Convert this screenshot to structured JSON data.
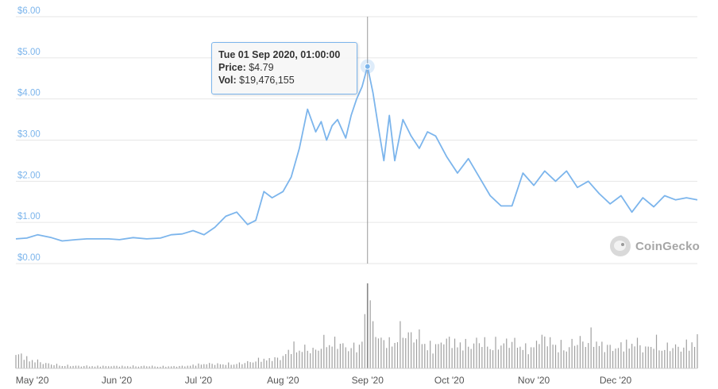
{
  "chart_data": {
    "type": "line",
    "title": "",
    "xlabel": "",
    "ylabel": "",
    "ylim": [
      0,
      6
    ],
    "y_ticks": [
      "$0.00",
      "$1.00",
      "$2.00",
      "$3.00",
      "$4.00",
      "$5.00",
      "$6.00"
    ],
    "x_ticks": [
      "May '20",
      "Jun '20",
      "Jul '20",
      "Aug '20",
      "Sep '20",
      "Oct '20",
      "Nov '20",
      "Dec '20"
    ],
    "x_tick_dates": [
      "2020-05-01",
      "2020-06-01",
      "2020-07-01",
      "2020-08-01",
      "2020-09-01",
      "2020-10-01",
      "2020-11-01",
      "2020-12-01"
    ],
    "grid": true,
    "colors": {
      "line": "#7cb5ec",
      "volume": "#a0a0a0",
      "axis_text": "#7cb5ec",
      "grid": "#e6e6e6"
    },
    "series": [
      {
        "x": [
          "2020-04-25",
          "2020-04-29",
          "2020-05-03",
          "2020-05-08",
          "2020-05-12",
          "2020-05-17",
          "2020-05-21",
          "2020-05-25",
          "2020-05-29",
          "2020-06-02",
          "2020-06-07",
          "2020-06-12",
          "2020-06-17",
          "2020-06-21",
          "2020-06-25",
          "2020-06-29",
          "2020-07-03",
          "2020-07-07",
          "2020-07-11",
          "2020-07-15",
          "2020-07-19",
          "2020-07-22",
          "2020-07-25",
          "2020-07-28",
          "2020-08-01",
          "2020-08-04",
          "2020-08-07",
          "2020-08-10",
          "2020-08-13",
          "2020-08-15",
          "2020-08-17",
          "2020-08-19",
          "2020-08-21",
          "2020-08-24",
          "2020-08-26",
          "2020-08-28",
          "2020-08-30",
          "2020-09-01",
          "2020-09-03",
          "2020-09-05",
          "2020-09-07",
          "2020-09-09",
          "2020-09-11",
          "2020-09-14",
          "2020-09-17",
          "2020-09-20",
          "2020-09-23",
          "2020-09-26",
          "2020-09-30",
          "2020-10-04",
          "2020-10-08",
          "2020-10-12",
          "2020-10-16",
          "2020-10-20",
          "2020-10-24",
          "2020-10-28",
          "2020-11-01",
          "2020-11-05",
          "2020-11-09",
          "2020-11-13",
          "2020-11-17",
          "2020-11-21",
          "2020-11-25",
          "2020-11-29",
          "2020-12-03",
          "2020-12-07",
          "2020-12-11",
          "2020-12-15",
          "2020-12-19",
          "2020-12-23",
          "2020-12-27",
          "2020-12-31"
        ],
        "values": [
          0.6,
          0.62,
          0.7,
          0.63,
          0.55,
          0.58,
          0.6,
          0.6,
          0.6,
          0.58,
          0.63,
          0.6,
          0.62,
          0.7,
          0.72,
          0.8,
          0.7,
          0.88,
          1.15,
          1.25,
          0.95,
          1.05,
          1.75,
          1.6,
          1.75,
          2.1,
          2.8,
          3.75,
          3.2,
          3.45,
          3.0,
          3.35,
          3.5,
          3.05,
          3.6,
          4.0,
          4.3,
          4.79,
          4.15,
          3.3,
          2.5,
          3.6,
          2.5,
          3.5,
          3.1,
          2.8,
          3.2,
          3.1,
          2.6,
          2.2,
          2.55,
          2.1,
          1.65,
          1.4,
          1.4,
          2.2,
          1.9,
          2.25,
          2.0,
          2.25,
          1.85,
          2.0,
          1.7,
          1.45,
          1.65,
          1.25,
          1.6,
          1.38,
          1.65,
          1.55,
          1.6,
          1.55
        ]
      }
    ],
    "volume": {
      "label": "Vol",
      "max": 20000000,
      "x": [
        "2020-04-25",
        "2020-05-01",
        "2020-05-08",
        "2020-05-15",
        "2020-05-22",
        "2020-05-29",
        "2020-06-05",
        "2020-06-12",
        "2020-06-19",
        "2020-06-26",
        "2020-07-03",
        "2020-07-10",
        "2020-07-17",
        "2020-07-24",
        "2020-07-31",
        "2020-08-05",
        "2020-08-09",
        "2020-08-13",
        "2020-08-17",
        "2020-08-21",
        "2020-08-25",
        "2020-08-29",
        "2020-09-01",
        "2020-09-05",
        "2020-09-09",
        "2020-09-13",
        "2020-09-17",
        "2020-09-21",
        "2020-09-25",
        "2020-09-29",
        "2020-10-03",
        "2020-10-07",
        "2020-10-11",
        "2020-10-15",
        "2020-10-19",
        "2020-10-23",
        "2020-10-27",
        "2020-10-31",
        "2020-11-02",
        "2020-11-06",
        "2020-11-10",
        "2020-11-14",
        "2020-11-18",
        "2020-11-22",
        "2020-11-26",
        "2020-11-30",
        "2020-12-04",
        "2020-12-08",
        "2020-12-12",
        "2020-12-16",
        "2020-12-20",
        "2020-12-24",
        "2020-12-28",
        "2020-12-31"
      ],
      "values": [
        4500000,
        2500000,
        1200000,
        800000,
        700000,
        700000,
        700000,
        700000,
        600000,
        700000,
        1400000,
        1300000,
        1500000,
        2700000,
        3000000,
        6500000,
        5700000,
        5500000,
        8500000,
        7500000,
        6200000,
        6500000,
        19476155,
        9000000,
        7500000,
        11000000,
        10000000,
        9000000,
        6000000,
        8500000,
        8000000,
        7000000,
        8000000,
        7500000,
        7200000,
        8200000,
        7000000,
        5500000,
        8500000,
        9000000,
        6500000,
        7000000,
        8200000,
        9500000,
        7000000,
        6000000,
        7000000,
        8000000,
        6000000,
        7800000,
        6200000,
        6500000,
        7000000,
        9000000
      ]
    },
    "tooltip": {
      "date": "Tue 01 Sep 2020, 01:00:00",
      "price_label": "Price:",
      "price_value": "$4.79",
      "vol_label": "Vol:",
      "vol_value": "$19,476,155",
      "point_x": "2020-09-01",
      "point_y": 4.79
    }
  },
  "watermark": {
    "text": "CoinGecko"
  }
}
